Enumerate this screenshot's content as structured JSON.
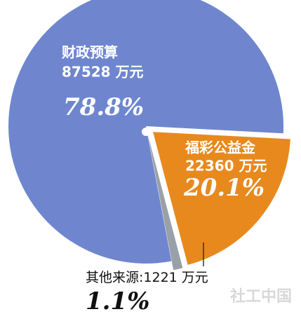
{
  "chart_data": {
    "type": "pie",
    "categories": [
      "财政预算",
      "福彩公益金",
      "其他来源"
    ],
    "amount_labels": [
      "87528 万元",
      "22360 万元",
      ":1221 万元"
    ],
    "values": [
      78.8,
      20.1,
      1.1
    ],
    "value_labels": [
      "78.8%",
      "20.1%",
      "1.1%"
    ],
    "colors": [
      "#6f86cf",
      "#e8891e",
      "#9aa0a8"
    ],
    "watermark": "社工中国"
  }
}
